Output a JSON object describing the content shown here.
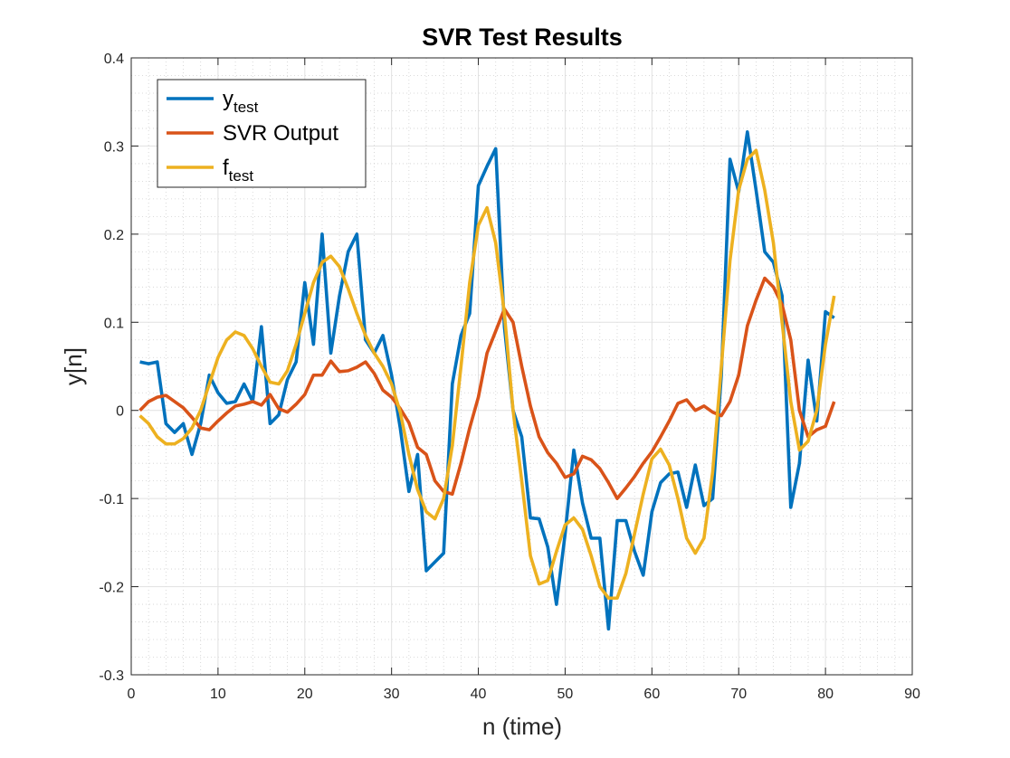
{
  "chart_data": {
    "type": "line",
    "title": "SVR Test Results",
    "xlabel": "n (time)",
    "ylabel": "y[n]",
    "xlim": [
      0,
      90
    ],
    "ylim": [
      -0.3,
      0.4
    ],
    "xticks": [
      "0",
      "10",
      "20",
      "30",
      "40",
      "50",
      "60",
      "70",
      "80",
      "90"
    ],
    "yticks": [
      "-0.3",
      "-0.2",
      "-0.1",
      "0",
      "0.1",
      "0.2",
      "0.3",
      "0.4"
    ],
    "grid": true,
    "minor_grid": true,
    "legend_position": "top-left",
    "x": [
      1,
      2,
      3,
      4,
      5,
      6,
      7,
      8,
      9,
      10,
      11,
      12,
      13,
      14,
      15,
      16,
      17,
      18,
      19,
      20,
      21,
      22,
      23,
      24,
      25,
      26,
      27,
      28,
      29,
      30,
      31,
      32,
      33,
      34,
      35,
      36,
      37,
      38,
      39,
      40,
      41,
      42,
      43,
      44,
      45,
      46,
      47,
      48,
      49,
      50,
      51,
      52,
      53,
      54,
      55,
      56,
      57,
      58,
      59,
      60,
      61,
      62,
      63,
      64,
      65,
      66,
      67,
      68,
      69,
      70,
      71,
      72,
      73,
      74,
      75,
      76,
      77,
      78,
      79,
      80,
      81
    ],
    "series": [
      {
        "name": "y",
        "name_sub": "test",
        "color": "#0072BD",
        "values": [
          0.055,
          0.053,
          0.055,
          -0.015,
          -0.025,
          -0.015,
          -0.05,
          -0.015,
          0.04,
          0.02,
          0.008,
          0.01,
          0.03,
          0.01,
          0.095,
          -0.015,
          -0.005,
          0.035,
          0.055,
          0.145,
          0.075,
          0.2,
          0.065,
          0.13,
          0.18,
          0.2,
          0.08,
          0.065,
          0.085,
          0.04,
          -0.02,
          -0.092,
          -0.05,
          -0.182,
          -0.172,
          -0.162,
          0.03,
          0.085,
          0.11,
          0.255,
          0.277,
          0.297,
          0.095,
          0.0,
          -0.03,
          -0.122,
          -0.123,
          -0.155,
          -0.22,
          -0.14,
          -0.045,
          -0.105,
          -0.145,
          -0.145,
          -0.248,
          -0.125,
          -0.125,
          -0.16,
          -0.187,
          -0.115,
          -0.082,
          -0.072,
          -0.07,
          -0.11,
          -0.062,
          -0.108,
          -0.1,
          0.04,
          0.285,
          0.248,
          0.316,
          0.25,
          0.18,
          0.168,
          0.13,
          -0.11,
          -0.06,
          0.057,
          -0.012,
          0.112,
          0.105
        ]
      },
      {
        "name": "SVR Output",
        "color": "#D95319",
        "values": [
          0.0,
          0.01,
          0.015,
          0.017,
          0.01,
          0.003,
          -0.008,
          -0.02,
          -0.022,
          -0.012,
          -0.003,
          0.005,
          0.007,
          0.01,
          0.006,
          0.018,
          0.002,
          -0.002,
          0.007,
          0.018,
          0.04,
          0.04,
          0.056,
          0.044,
          0.045,
          0.049,
          0.055,
          0.042,
          0.023,
          0.015,
          0.002,
          -0.014,
          -0.042,
          -0.05,
          -0.08,
          -0.092,
          -0.095,
          -0.06,
          -0.02,
          0.015,
          0.065,
          0.09,
          0.115,
          0.1,
          0.05,
          0.005,
          -0.03,
          -0.048,
          -0.06,
          -0.076,
          -0.072,
          -0.052,
          -0.056,
          -0.066,
          -0.082,
          -0.1,
          -0.088,
          -0.075,
          -0.06,
          -0.047,
          -0.03,
          -0.012,
          0.008,
          0.012,
          0.0,
          0.005,
          -0.002,
          -0.006,
          0.01,
          0.04,
          0.096,
          0.125,
          0.15,
          0.14,
          0.12,
          0.08,
          0.0,
          -0.03,
          -0.022,
          -0.018,
          0.01
        ]
      },
      {
        "name": "f",
        "name_sub": "test",
        "color": "#EDB120",
        "values": [
          -0.006,
          -0.015,
          -0.03,
          -0.038,
          -0.038,
          -0.032,
          -0.02,
          0.0,
          0.03,
          0.06,
          0.08,
          0.089,
          0.085,
          0.07,
          0.05,
          0.032,
          0.03,
          0.045,
          0.075,
          0.11,
          0.145,
          0.168,
          0.175,
          0.163,
          0.138,
          0.11,
          0.085,
          0.065,
          0.05,
          0.03,
          -0.002,
          -0.05,
          -0.09,
          -0.115,
          -0.123,
          -0.1,
          -0.04,
          0.05,
          0.145,
          0.21,
          0.23,
          0.19,
          0.11,
          0.0,
          -0.08,
          -0.165,
          -0.197,
          -0.193,
          -0.16,
          -0.13,
          -0.122,
          -0.135,
          -0.165,
          -0.2,
          -0.213,
          -0.213,
          -0.185,
          -0.14,
          -0.095,
          -0.055,
          -0.044,
          -0.062,
          -0.1,
          -0.145,
          -0.162,
          -0.145,
          -0.07,
          0.05,
          0.17,
          0.25,
          0.285,
          0.295,
          0.25,
          0.19,
          0.1,
          0.01,
          -0.045,
          -0.035,
          0.0,
          0.075,
          0.13
        ]
      }
    ]
  }
}
